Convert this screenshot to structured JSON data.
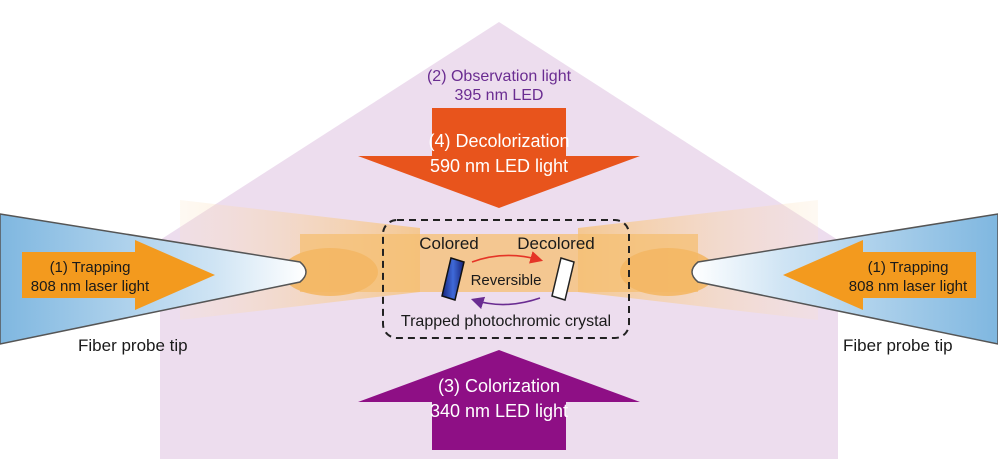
{
  "diagram": {
    "observation": {
      "line1": "(2) Observation light",
      "line2": "395 nm LED",
      "color": "#6a2c91"
    },
    "decolorization": {
      "line1": "(4) Decolorization",
      "line2": "590 nm LED light",
      "color": "#e8541c"
    },
    "colorization": {
      "line1": "(3) Colorization",
      "line2": "340 nm LED light",
      "color": "#8e0f85"
    },
    "trapping_left": {
      "line1": "(1) Trapping",
      "line2": "808 nm laser light",
      "color": "#f39a1e"
    },
    "trapping_right": {
      "line1": "(1) Trapping",
      "line2": "808 nm laser light",
      "color": "#f39a1e"
    },
    "fiber_left": "Fiber probe tip",
    "fiber_right": "Fiber probe tip",
    "crystal": {
      "colored": "Colored",
      "decolored": "Decolored",
      "reversible": "Reversible",
      "caption": "Trapped photochromic crystal"
    },
    "colors": {
      "observation_fill": "#e9d6ea",
      "beam_glow": "#f7c98a",
      "fiber_blue": "#8fc2e4",
      "colored_crystal": "#1d2e8c",
      "arrow_red": "#e53527",
      "arrow_purple": "#6a2c91"
    }
  }
}
